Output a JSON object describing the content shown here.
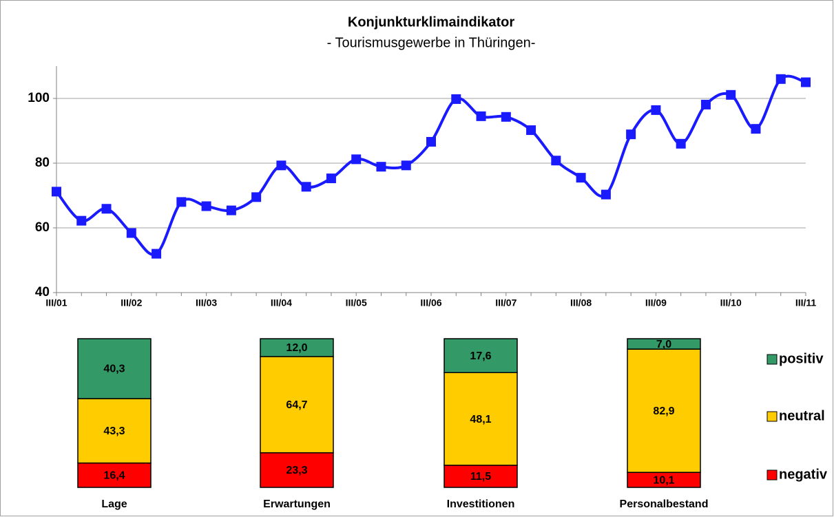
{
  "chart_data": [
    {
      "type": "line",
      "title": "Konjunkturklimaindikator",
      "subtitle": "- Tourismusgewerbe  in Thüringen-",
      "categories": [
        "III/01",
        null,
        null,
        "III/02",
        null,
        null,
        "III/03",
        null,
        null,
        "III/04",
        null,
        null,
        "III/05",
        null,
        null,
        "III/06",
        null,
        null,
        "III/07",
        null,
        null,
        "III/08",
        null,
        null,
        "III/09",
        null,
        null,
        "III/10",
        null,
        null,
        "III/11"
      ],
      "series": [
        {
          "color": "#1a1aff",
          "values": [
            71.2,
            62.2,
            65.9,
            58.4,
            52,
            68,
            66.7,
            65.4,
            69.5,
            79.3,
            72.7,
            75.3,
            81.2,
            78.9,
            79.3,
            86.6,
            99.8,
            94.5,
            94.3,
            90.2,
            80.8,
            75.5,
            70.3,
            88.9,
            96.4,
            86,
            98.1,
            101.1,
            90.6,
            106,
            105
          ]
        }
      ],
      "ylim": [
        40,
        110
      ],
      "yticks": [
        40,
        60,
        80,
        100
      ],
      "grid": true,
      "smooth": true
    },
    {
      "type": "stacked_bar",
      "stacking": "percent",
      "categories": [
        "Lage",
        "Erwartungen",
        "Investitionen",
        "Personalbestand"
      ],
      "series": [
        {
          "name": "negativ",
          "color": "#ff0000",
          "values": [
            16.4,
            23.3,
            11.5,
            10.1
          ],
          "value_labels": [
            "16,4",
            "23,3",
            "11,5",
            "10,1"
          ]
        },
        {
          "name": "neutral",
          "color": "#ffcc00",
          "values": [
            43.3,
            64.7,
            48.1,
            82.9
          ],
          "value_labels": [
            "43,3",
            "64,7",
            "48,1",
            "82,9"
          ]
        },
        {
          "name": "positiv",
          "color": "#339966",
          "values": [
            40.3,
            12.0,
            17.6,
            7.0
          ],
          "value_labels": [
            "40,3",
            "12,0",
            "17,6",
            "7,0"
          ]
        }
      ],
      "legend": "right"
    }
  ]
}
